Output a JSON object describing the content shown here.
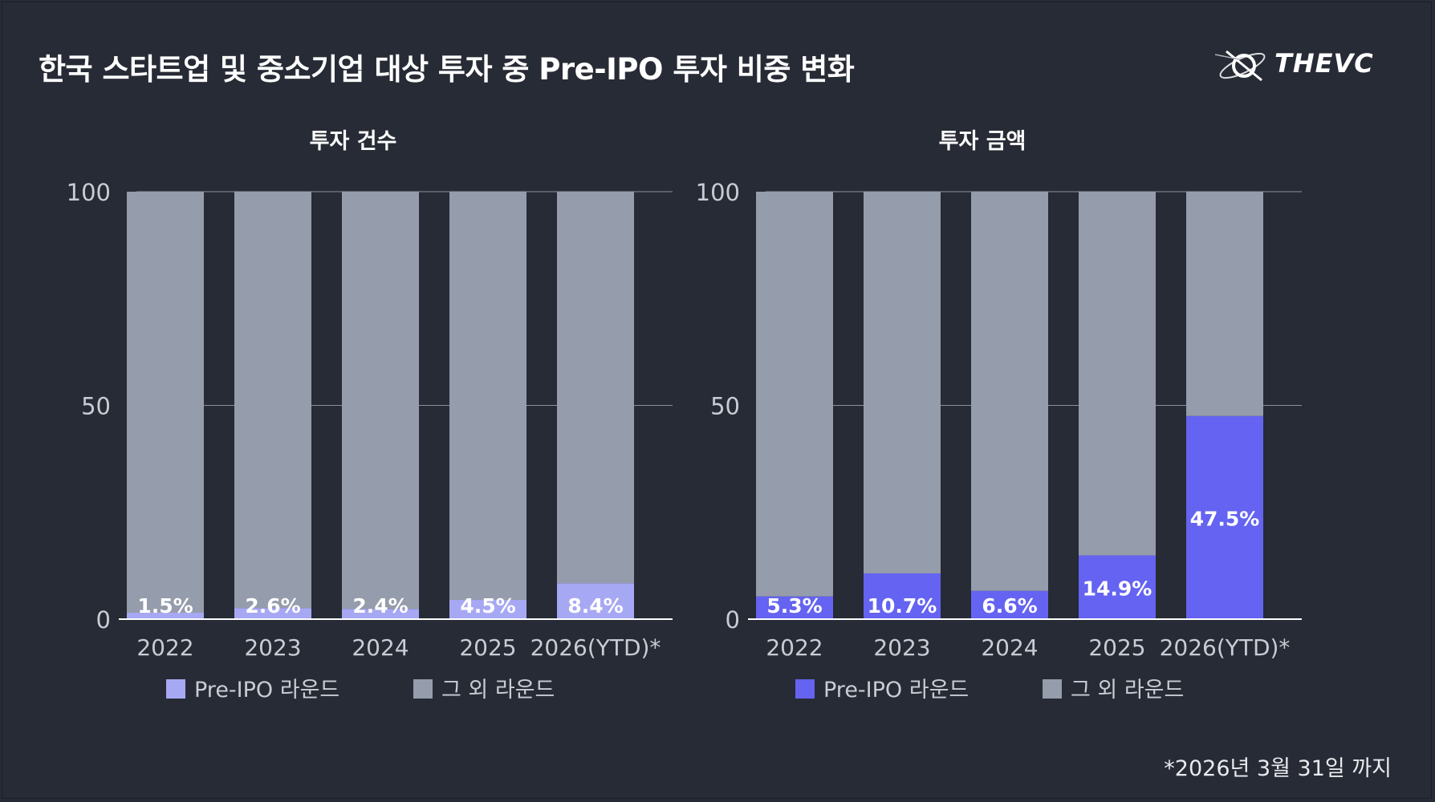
{
  "title": "한국 스타트업 및 중소기업 대상 투자 중 Pre-IPO 투자 비중 변화",
  "logo": {
    "text": "THEVC",
    "icon": "comet-orbit-icon"
  },
  "footnote": "*2026년 3월 31일 까지",
  "colors": {
    "background": "#272b35",
    "other": "#959cab",
    "gridline": "#8b909c",
    "axis": "#ffffff",
    "tick_text": "#c9ccd3"
  },
  "chart_data": [
    {
      "type": "bar",
      "stacked": true,
      "title": "투자 건수",
      "categories": [
        "2022",
        "2023",
        "2024",
        "2025",
        "2026(YTD)*"
      ],
      "ylim": [
        0,
        100
      ],
      "yticks": [
        "0",
        "50",
        "100"
      ],
      "grid": true,
      "legend_position": "bottom",
      "series": [
        {
          "name": "Pre-IPO 라운드",
          "color": "#a7a8f3",
          "values": [
            1.5,
            2.6,
            2.4,
            4.5,
            8.4
          ],
          "labels": [
            "1.5%",
            "2.6%",
            "2.4%",
            "4.5%",
            "8.4%"
          ]
        },
        {
          "name": "그 외 라운드",
          "color": "#959cab",
          "values": [
            98.5,
            97.4,
            97.6,
            95.5,
            91.6
          ]
        }
      ]
    },
    {
      "type": "bar",
      "stacked": true,
      "title": "투자 금액",
      "categories": [
        "2022",
        "2023",
        "2024",
        "2025",
        "2026(YTD)*"
      ],
      "ylim": [
        0,
        100
      ],
      "yticks": [
        "0",
        "50",
        "100"
      ],
      "grid": true,
      "legend_position": "bottom",
      "series": [
        {
          "name": "Pre-IPO 라운드",
          "color": "#6563f1",
          "values": [
            5.3,
            10.7,
            6.6,
            14.9,
            47.5
          ],
          "labels": [
            "5.3%",
            "10.7%",
            "6.6%",
            "14.9%",
            "47.5%"
          ]
        },
        {
          "name": "그 외 라운드",
          "color": "#959cab",
          "values": [
            94.7,
            89.3,
            93.4,
            85.1,
            52.5
          ]
        }
      ]
    }
  ]
}
